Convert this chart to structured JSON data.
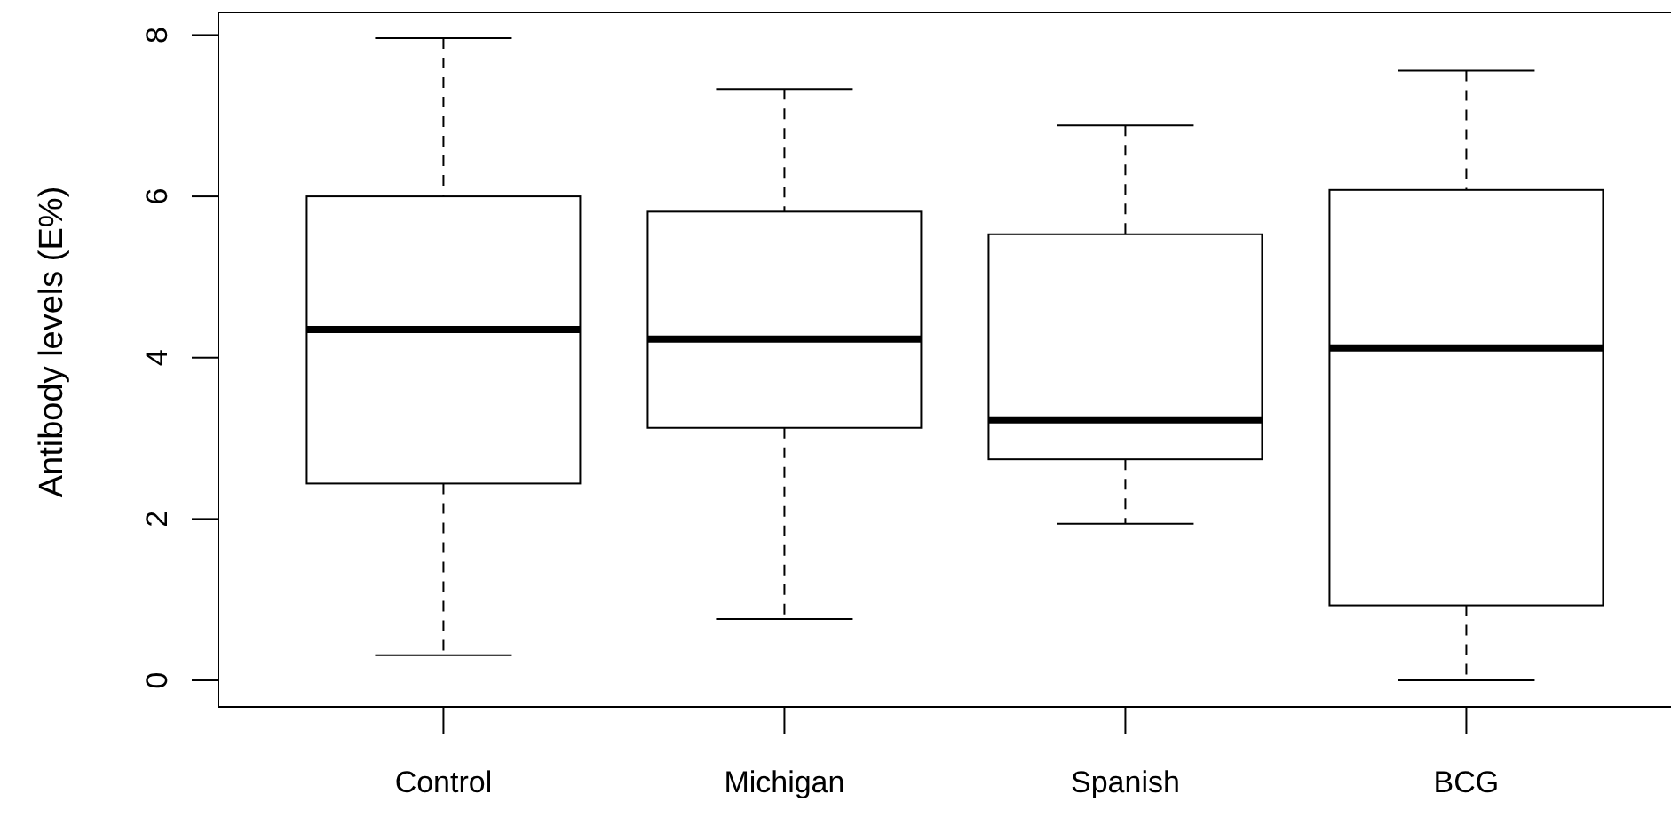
{
  "chart_data": {
    "type": "box",
    "ylabel": "Antibody levels (E%)",
    "categories": [
      "Control",
      "Michigan",
      "Spanish",
      "BCG"
    ],
    "boxes": [
      {
        "low": 0.31,
        "q1": 2.44,
        "median": 4.35,
        "q3": 6.0,
        "high": 7.96
      },
      {
        "low": 0.76,
        "q1": 3.13,
        "median": 4.23,
        "q3": 5.81,
        "high": 7.33
      },
      {
        "low": 1.94,
        "q1": 2.74,
        "median": 3.23,
        "q3": 5.53,
        "high": 6.88
      },
      {
        "low": 0.0,
        "q1": 0.93,
        "median": 4.12,
        "q3": 6.08,
        "high": 7.56
      }
    ],
    "ylim": [
      -0.33,
      8.28
    ],
    "yticks": [
      0,
      2,
      4,
      6,
      8
    ],
    "grid": false
  }
}
